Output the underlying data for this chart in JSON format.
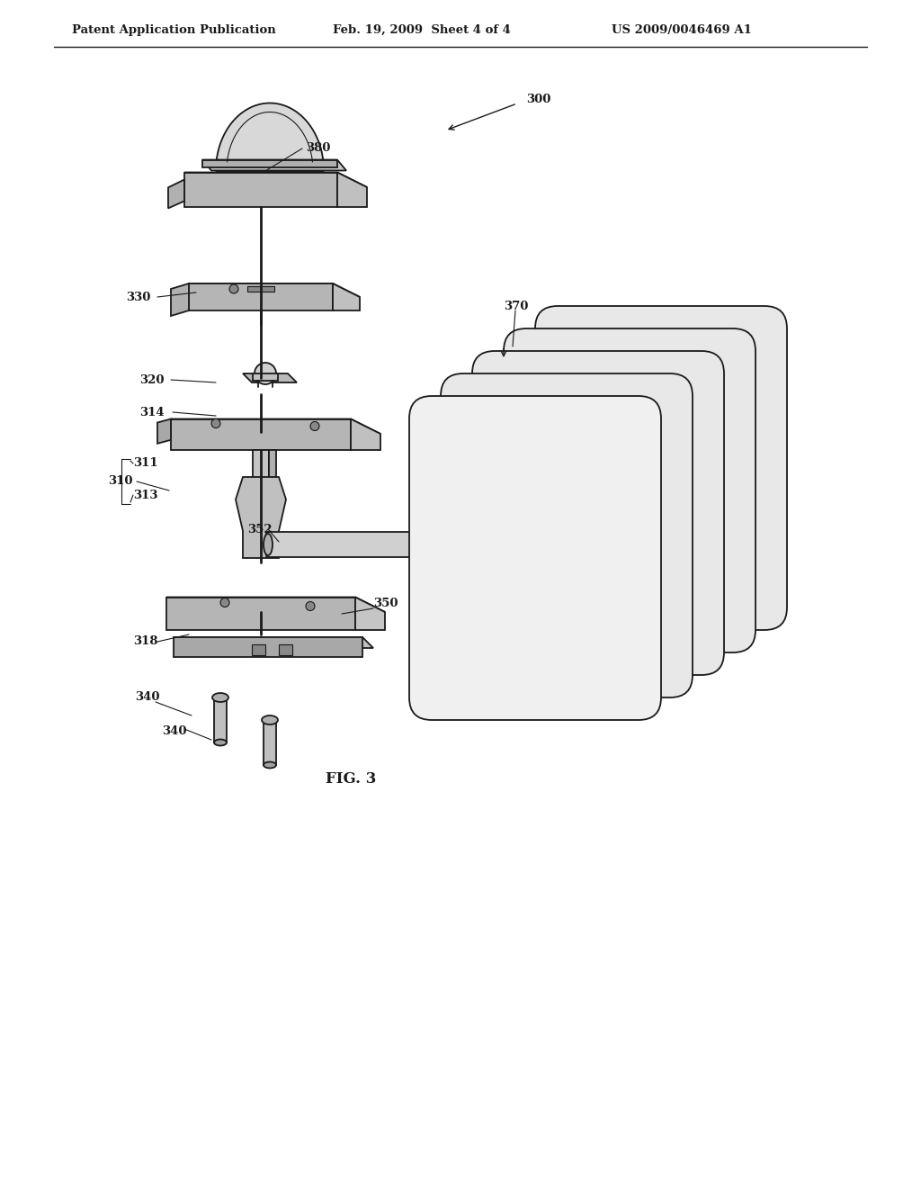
{
  "background_color": "#ffffff",
  "header_left": "Patent Application Publication",
  "header_center": "Feb. 19, 2009  Sheet 4 of 4",
  "header_right": "US 2009/0046469 A1",
  "figure_label": "FIG. 3",
  "line_color": "#1a1a1a",
  "text_color": "#1a1a1a"
}
